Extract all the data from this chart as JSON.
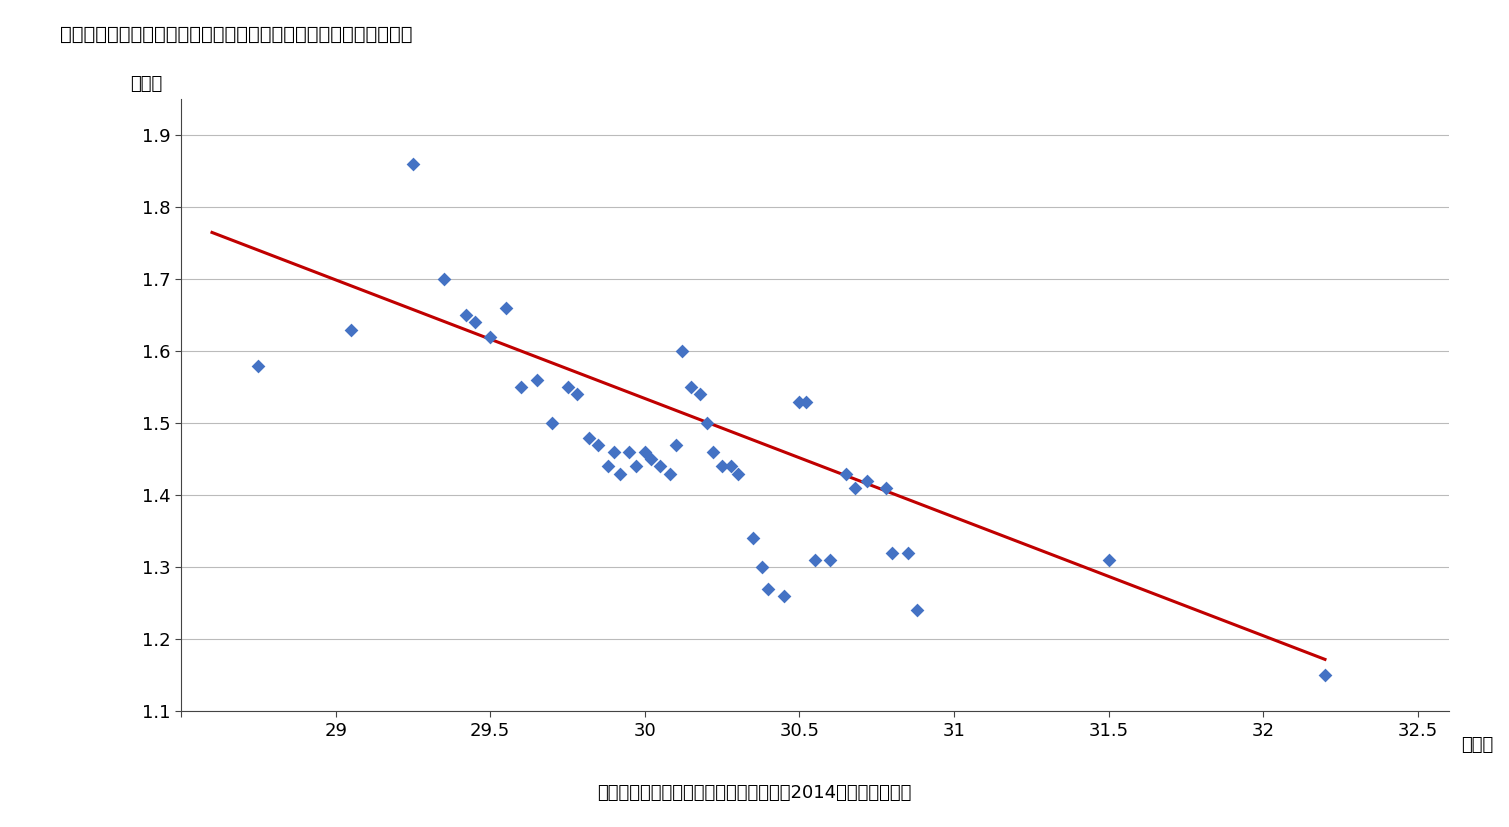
{
  "title": "『図表２』都道府県別第一子出産時の母親の年齢と出生率の相関図",
  "title_raw": "『図表２』都道府県別第一子出産時の母親の年齢と出生率の相関図",
  "xlabel": "（歳）",
  "ylabel": "（％）",
  "footnote": "（資料）　厚生労働省「人口動態統計　2014」より筆者作成",
  "xlim": [
    28.6,
    32.6
  ],
  "ylim": [
    1.1,
    1.95
  ],
  "xticks": [
    28.5,
    29.0,
    29.5,
    30.0,
    30.5,
    31.0,
    31.5,
    32.0,
    32.5
  ],
  "yticks": [
    1.1,
    1.2,
    1.3,
    1.4,
    1.5,
    1.6,
    1.7,
    1.8,
    1.9
  ],
  "scatter_color": "#4472C4",
  "line_color": "#C00000",
  "marker_size": 7,
  "points": [
    [
      28.75,
      1.58
    ],
    [
      29.05,
      1.63
    ],
    [
      29.25,
      1.86
    ],
    [
      29.35,
      1.7
    ],
    [
      29.42,
      1.65
    ],
    [
      29.45,
      1.64
    ],
    [
      29.5,
      1.62
    ],
    [
      29.55,
      1.66
    ],
    [
      29.6,
      1.55
    ],
    [
      29.65,
      1.56
    ],
    [
      29.7,
      1.5
    ],
    [
      29.75,
      1.55
    ],
    [
      29.78,
      1.54
    ],
    [
      29.82,
      1.48
    ],
    [
      29.85,
      1.47
    ],
    [
      29.88,
      1.44
    ],
    [
      29.9,
      1.46
    ],
    [
      29.92,
      1.43
    ],
    [
      29.95,
      1.46
    ],
    [
      29.97,
      1.44
    ],
    [
      30.0,
      1.46
    ],
    [
      30.02,
      1.45
    ],
    [
      30.05,
      1.44
    ],
    [
      30.08,
      1.43
    ],
    [
      30.1,
      1.47
    ],
    [
      30.12,
      1.6
    ],
    [
      30.15,
      1.55
    ],
    [
      30.18,
      1.54
    ],
    [
      30.2,
      1.5
    ],
    [
      30.22,
      1.46
    ],
    [
      30.25,
      1.44
    ],
    [
      30.28,
      1.44
    ],
    [
      30.3,
      1.43
    ],
    [
      30.35,
      1.34
    ],
    [
      30.38,
      1.3
    ],
    [
      30.4,
      1.27
    ],
    [
      30.45,
      1.26
    ],
    [
      30.5,
      1.53
    ],
    [
      30.52,
      1.53
    ],
    [
      30.55,
      1.31
    ],
    [
      30.6,
      1.31
    ],
    [
      30.65,
      1.43
    ],
    [
      30.68,
      1.41
    ],
    [
      30.72,
      1.42
    ],
    [
      30.78,
      1.41
    ],
    [
      30.8,
      1.32
    ],
    [
      30.85,
      1.32
    ],
    [
      30.88,
      1.24
    ],
    [
      31.5,
      1.31
    ],
    [
      32.2,
      1.15
    ]
  ],
  "trendline_x": [
    28.6,
    32.2
  ],
  "trendline_y": [
    1.765,
    1.172
  ]
}
